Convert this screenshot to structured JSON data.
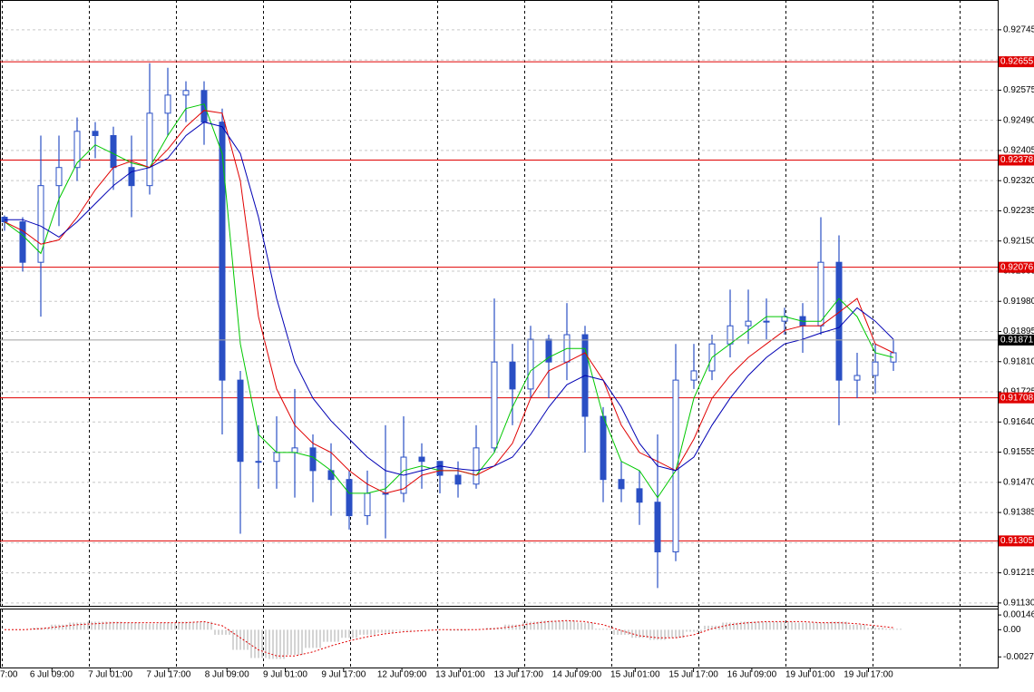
{
  "chart_data": [
    {
      "type": "candlestick",
      "x_labels": [
        "7:00",
        "6 Jul 09:00",
        "7 Jul 01:00",
        "7 Jul 17:00",
        "8 Jul 09:00",
        "9 Jul 01:00",
        "9 Jul 17:00",
        "12 Jul 09:00",
        "13 Jul 01:00",
        "13 Jul 17:00",
        "14 Jul 09:00",
        "15 Jul 01:00",
        "15 Jul 17:00",
        "16 Jul 09:00",
        "19 Jul 01:00",
        "19 Jul 17:00"
      ],
      "color": "#2a4fc4",
      "open": [
        0.92217,
        0.92204,
        0.9209,
        0.92306,
        0.92357,
        0.92459,
        0.92447,
        0.92357,
        0.92306,
        0.9251,
        0.92561,
        0.92574,
        0.92485,
        0.91758,
        0.91529,
        0.91529,
        0.91554,
        0.91567,
        0.91503,
        0.91478,
        0.91376,
        0.91439,
        0.91439,
        0.91541,
        0.91529,
        0.9149,
        0.91465,
        0.91567,
        0.91809,
        0.91733,
        0.91873,
        0.91809,
        0.91886,
        0.91656,
        0.91478,
        0.91452,
        0.91414,
        0.91274,
        0.91758,
        0.91784,
        0.9186,
        0.91911,
        0.91924,
        0.91924,
        0.91937,
        0.91911,
        0.9209,
        0.91758,
        0.91771,
        0.91809
      ],
      "high": [
        0.92222,
        0.92217,
        0.92447,
        0.92447,
        0.92498,
        0.92485,
        0.92472,
        0.92447,
        0.92651,
        0.92638,
        0.926,
        0.926,
        0.92523,
        0.91784,
        0.91631,
        0.91656,
        0.91733,
        0.91605,
        0.9158,
        0.91503,
        0.91503,
        0.91631,
        0.91656,
        0.9158,
        0.91529,
        0.91529,
        0.91631,
        0.91988,
        0.9186,
        0.91911,
        0.91886,
        0.91975,
        0.91911,
        0.91682,
        0.91529,
        0.91503,
        0.91605,
        0.9186,
        0.9186,
        0.91886,
        0.92013,
        0.92013,
        0.91988,
        0.91962,
        0.91975,
        0.92217,
        0.92166,
        0.91835,
        0.9186,
        0.91873
      ],
      "low": [
        0.92179,
        0.92064,
        0.91937,
        0.92192,
        0.92319,
        0.92383,
        0.92294,
        0.92217,
        0.92281,
        0.92447,
        0.92485,
        0.92421,
        0.91605,
        0.91325,
        0.91452,
        0.91452,
        0.91427,
        0.91414,
        0.91376,
        0.91337,
        0.9135,
        0.91312,
        0.91414,
        0.91452,
        0.91439,
        0.91427,
        0.91452,
        0.91554,
        0.91631,
        0.91707,
        0.91707,
        0.91758,
        0.91554,
        0.91414,
        0.91414,
        0.9135,
        0.91172,
        0.91248,
        0.91733,
        0.91758,
        0.91822,
        0.9186,
        0.91873,
        0.91886,
        0.91835,
        0.91886,
        0.91631,
        0.91707,
        0.9172,
        0.91784
      ],
      "close": [
        0.92204,
        0.9209,
        0.92306,
        0.92357,
        0.92459,
        0.92447,
        0.92357,
        0.92306,
        0.9251,
        0.92561,
        0.92574,
        0.92485,
        0.91758,
        0.91529,
        0.91529,
        0.91554,
        0.91567,
        0.91503,
        0.91478,
        0.91376,
        0.91439,
        0.91439,
        0.91541,
        0.91529,
        0.9149,
        0.91465,
        0.91567,
        0.91809,
        0.91733,
        0.91873,
        0.91809,
        0.91886,
        0.91656,
        0.91478,
        0.91452,
        0.91414,
        0.91274,
        0.91758,
        0.91784,
        0.9186,
        0.91911,
        0.91924,
        0.91924,
        0.91937,
        0.91911,
        0.9209,
        0.91758,
        0.91771,
        0.91809,
        0.91835
      ],
      "series": [
        {
          "color": "#00c800",
          "values": [
            0.92204,
            0.92166,
            0.92115,
            0.92268,
            0.9237,
            0.92421,
            0.92396,
            0.9237,
            0.92357,
            0.92447,
            0.92523,
            0.92536,
            0.92396,
            0.9186,
            0.91605,
            0.91554,
            0.91554,
            0.91541,
            0.91503,
            0.91439,
            0.91439,
            0.91452,
            0.91503,
            0.91516,
            0.91503,
            0.91503,
            0.9149,
            0.91554,
            0.91682,
            0.91784,
            0.91822,
            0.91847,
            0.91847,
            0.91656,
            0.91529,
            0.91503,
            0.91427,
            0.91503,
            0.91707,
            0.91822,
            0.9186,
            0.91898,
            0.91937,
            0.91937,
            0.91924,
            0.91924,
            0.91988,
            0.91937,
            0.91835,
            0.91822
          ]
        },
        {
          "color": "#e00000",
          "values": [
            0.92204,
            0.92179,
            0.92141,
            0.92153,
            0.92217,
            0.92294,
            0.92357,
            0.92375,
            0.92357,
            0.92408,
            0.92472,
            0.92518,
            0.9251,
            0.92319,
            0.91937,
            0.91733,
            0.91631,
            0.9158,
            0.91554,
            0.91503,
            0.91465,
            0.91439,
            0.91452,
            0.9149,
            0.91503,
            0.91503,
            0.9149,
            0.91516,
            0.9158,
            0.91707,
            0.91784,
            0.91809,
            0.91835,
            0.91758,
            0.91631,
            0.91554,
            0.91529,
            0.91503,
            0.91592,
            0.91707,
            0.91771,
            0.91822,
            0.9186,
            0.91898,
            0.91911,
            0.91911,
            0.91949,
            0.91988,
            0.9186,
            0.91835
          ]
        },
        {
          "color": "#0000b4",
          "values": [
            0.9221,
            0.9221,
            0.92192,
            0.92161,
            0.92204,
            0.92255,
            0.92306,
            0.92345,
            0.92357,
            0.92383,
            0.92447,
            0.92485,
            0.92472,
            0.92396,
            0.92217,
            0.91988,
            0.91809,
            0.91707,
            0.91643,
            0.91592,
            0.91541,
            0.91503,
            0.9149,
            0.91503,
            0.91516,
            0.91508,
            0.91503,
            0.91516,
            0.91541,
            0.91605,
            0.91682,
            0.91745,
            0.91771,
            0.91758,
            0.91682,
            0.9158,
            0.91516,
            0.91503,
            0.91541,
            0.91631,
            0.91707,
            0.91771,
            0.91822,
            0.9186,
            0.91873,
            0.91891,
            0.91906,
            0.91962,
            0.91924,
            0.91873
          ]
        }
      ],
      "ylim": [
        0.91122,
        0.92829
      ],
      "yticks": [
        0.92745,
        {
          "value": 0.9266,
          "label": "0.92660"
        },
        0.92575,
        {
          "value": 0.9249,
          "label": "0.92490"
        },
        0.92405,
        {
          "value": 0.9232,
          "label": "0.92320"
        },
        0.92235,
        {
          "value": 0.9215,
          "label": "0.92150"
        },
        0.92065,
        {
          "value": 0.9198,
          "label": "0.91980"
        },
        0.91895,
        {
          "value": 0.9181,
          "label": "0.91810"
        },
        0.91725,
        {
          "value": 0.9164,
          "label": "0.91640"
        },
        0.91555,
        {
          "value": 0.9147,
          "label": "0.91470"
        },
        0.91385,
        {
          "value": 0.913,
          "label": "0.91300"
        },
        0.91215,
        {
          "value": 0.9113,
          "label": "0.91130"
        }
      ],
      "grid": true,
      "levels": [
        0.92655,
        0.92378,
        0.92076,
        0.91708,
        0.91305
      ],
      "level_color": "#e00000",
      "last_price": 0.91871
    },
    {
      "type": "oscillator",
      "histogram": {
        "color": "#a8a8a8",
        "values": [
          0,
          0,
          0.0002,
          0.0005,
          0.0007,
          0.0008,
          0.0008,
          0.0007,
          0.0006,
          0.0007,
          0.0008,
          0.0008,
          -0.0005,
          -0.002,
          -0.0028,
          -0.0029,
          -0.0025,
          -0.0018,
          -0.0012,
          -0.0008,
          -0.0005,
          -0.0003,
          -0.0001,
          0,
          0,
          -0.0001,
          0,
          0.0002,
          0.0005,
          0.0008,
          0.0009,
          0.0009,
          0.0007,
          0.0001,
          -0.0005,
          -0.0008,
          -0.001,
          -0.0008,
          -0.0002,
          0.0004,
          0.0007,
          0.0008,
          0.0008,
          0.0008,
          0.0007,
          0.0007,
          0.0008,
          0.0005,
          0.0002,
          0.0001
        ]
      },
      "signal": {
        "color": "#e00000",
        "values": [
          0,
          0,
          0.0001,
          0.0003,
          0.0005,
          0.0006,
          0.0007,
          0.0007,
          0.0007,
          0.0007,
          0.0007,
          0.0008,
          0.0004,
          -0.0008,
          -0.002,
          -0.0026,
          -0.0026,
          -0.0022,
          -0.0016,
          -0.0011,
          -0.0007,
          -0.0004,
          -0.0002,
          -0.0001,
          0,
          0,
          0,
          0.0001,
          0.0003,
          0.0006,
          0.0008,
          0.0009,
          0.0008,
          0.0005,
          -0.0001,
          -0.0006,
          -0.0008,
          -0.0008,
          -0.0005,
          0.0001,
          0.0005,
          0.0007,
          0.0008,
          0.0008,
          0.0008,
          0.0007,
          0.0007,
          0.0006,
          0.0004,
          0.0002
        ]
      },
      "ylim": [
        -0.00375,
        0.00201
      ],
      "yticks": [
        0.001463,
        {
          "value": 0,
          "label": "0.00"
        },
        -0.0027
      ]
    }
  ]
}
